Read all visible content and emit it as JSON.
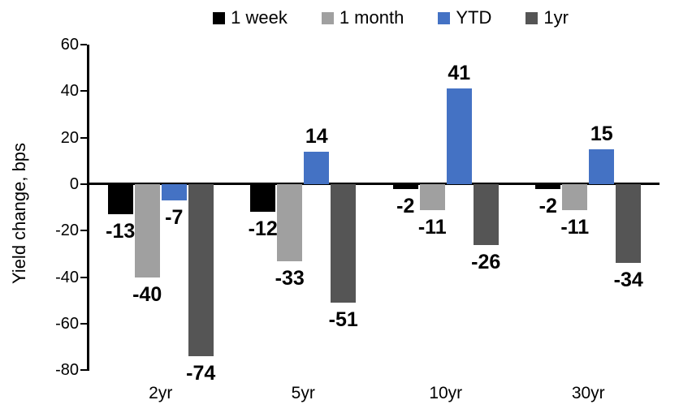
{
  "chart_data": {
    "type": "bar",
    "title": "",
    "ylabel": "Yield change, bps",
    "xlabel": "",
    "categories": [
      "2yr",
      "5yr",
      "10yr",
      "30yr"
    ],
    "series": [
      {
        "name": "1 week",
        "color": "#000000",
        "values": [
          -13,
          -12,
          -2,
          -2
        ]
      },
      {
        "name": "1 month",
        "color": "#A0A0A0",
        "values": [
          -40,
          -33,
          -11,
          -11
        ]
      },
      {
        "name": "YTD",
        "color": "#4472C4",
        "values": [
          -7,
          14,
          41,
          15
        ]
      },
      {
        "name": "1yr",
        "color": "#555555",
        "values": [
          -74,
          -51,
          -26,
          -34
        ]
      }
    ],
    "ylim": [
      -80,
      60
    ],
    "yticks": [
      60,
      40,
      20,
      0,
      -20,
      -40,
      -60,
      -80
    ],
    "legend_position": "top",
    "grid": false,
    "data_labels": true,
    "axis_color": "#000000",
    "label_color": "#000000"
  }
}
